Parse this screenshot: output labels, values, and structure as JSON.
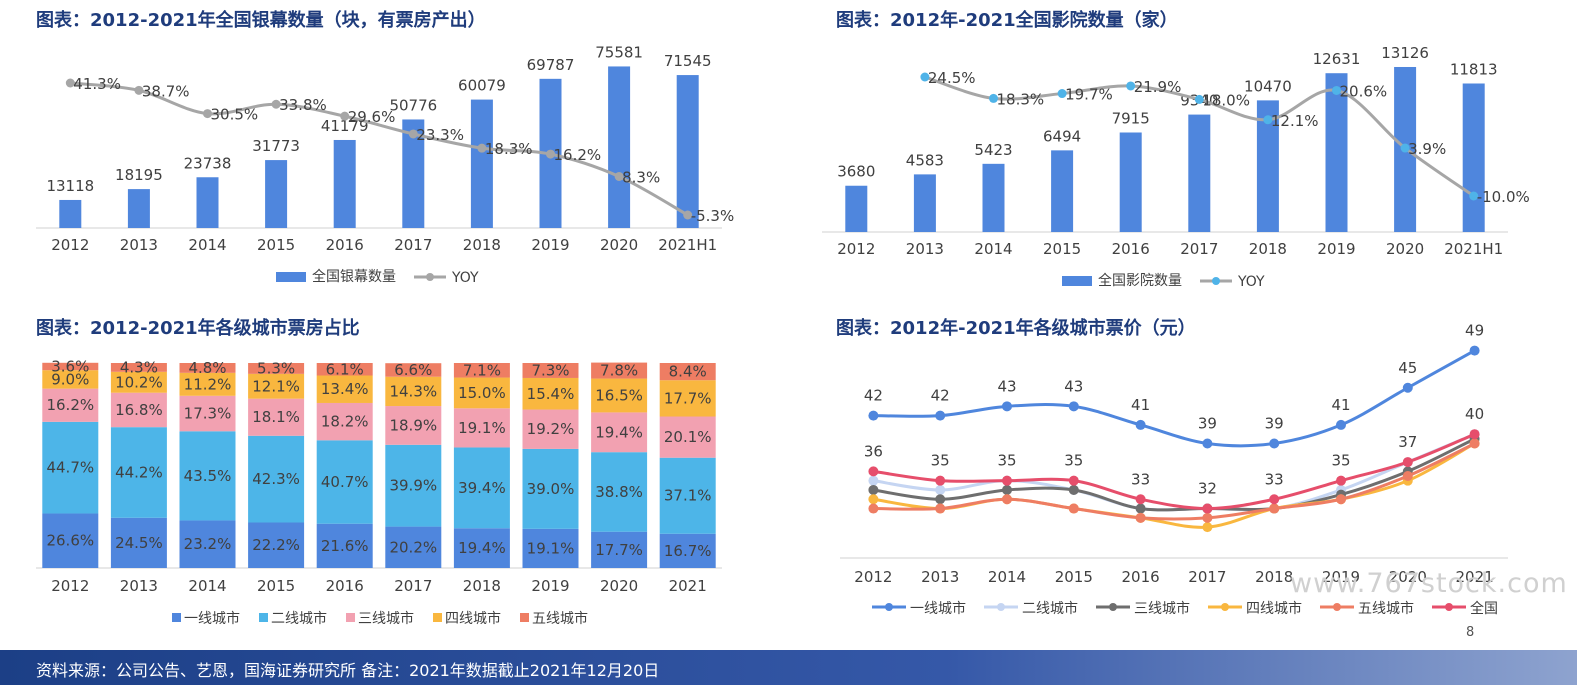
{
  "panels": {
    "screens_title": "图表：2012-2021年全国银幕数量（块，有票房产出）",
    "cinemas_title": "图表：2012年-2021全国影院数量（家）",
    "share_title": "图表：2012-2021年各级城市票房占比",
    "price_title": "图表：2012年-2021年各级城市票价（元）"
  },
  "footer": {
    "source": "资料来源：公司公告、艺恩，国海证券研究所 备注：2021年数据截止2021年12月20日"
  },
  "page_number": "8",
  "watermark": "www.767stock.com",
  "chart_data": [
    {
      "id": "screens",
      "type": "bar",
      "categories": [
        "2012",
        "2013",
        "2014",
        "2015",
        "2016",
        "2017",
        "2018",
        "2019",
        "2020",
        "2021H1"
      ],
      "series": [
        {
          "name": "全国银幕数量",
          "type": "bar",
          "values": [
            13118,
            18195,
            23738,
            31773,
            41179,
            50776,
            60079,
            69787,
            75581,
            71545
          ],
          "color": "#4f86dd"
        },
        {
          "name": "YOY",
          "type": "line",
          "values": [
            41.3,
            38.7,
            30.5,
            33.8,
            29.6,
            23.3,
            18.3,
            16.2,
            8.3,
            -5.3
          ],
          "labels": [
            "41.3%",
            "38.7%",
            "30.5%",
            "33.8%",
            "29.6%",
            "23.3%",
            "18.3%",
            "16.2%",
            "8.3%",
            "-5.3%"
          ],
          "color": "#a6a6a6"
        }
      ],
      "ylim": [
        0,
        80000
      ],
      "legend": "bottom"
    },
    {
      "id": "cinemas",
      "type": "bar",
      "categories": [
        "2012",
        "2013",
        "2014",
        "2015",
        "2016",
        "2017",
        "2018",
        "2019",
        "2020",
        "2021H1"
      ],
      "series": [
        {
          "name": "全国影院数量",
          "type": "bar",
          "values": [
            3680,
            4583,
            5423,
            6494,
            7915,
            9340,
            10470,
            12631,
            13126,
            11813
          ],
          "color": "#4f86dd"
        },
        {
          "name": "YOY",
          "type": "line",
          "values": [
            null,
            24.5,
            18.3,
            19.7,
            21.9,
            18.0,
            12.1,
            20.6,
            3.9,
            -10.0
          ],
          "labels": [
            "",
            "24.5%",
            "18.3%",
            "19.7%",
            "21.9%",
            "18.0%",
            "12.1%",
            "20.6%",
            "3.9%",
            "-10.0%"
          ],
          "color": "#a6a6a6",
          "marker_color": "#4fb3e8"
        }
      ],
      "ylim": [
        0,
        14000
      ],
      "legend": "bottom"
    },
    {
      "id": "share",
      "type": "bar",
      "stacked": true,
      "categories": [
        "2012",
        "2013",
        "2014",
        "2015",
        "2016",
        "2017",
        "2018",
        "2019",
        "2020",
        "2021"
      ],
      "series": [
        {
          "name": "一线城市",
          "values": [
            26.6,
            24.5,
            23.2,
            22.2,
            21.6,
            20.2,
            19.4,
            19.1,
            17.7,
            16.7
          ],
          "color": "#4f86dd"
        },
        {
          "name": "二线城市",
          "values": [
            44.7,
            44.2,
            43.5,
            42.3,
            40.7,
            39.9,
            39.4,
            39.0,
            38.8,
            37.1
          ],
          "color": "#4db5e8"
        },
        {
          "name": "三线城市",
          "values": [
            16.2,
            16.8,
            17.3,
            18.1,
            18.2,
            18.9,
            19.1,
            19.2,
            19.4,
            20.1
          ],
          "color": "#f2a1b1"
        },
        {
          "name": "四线城市",
          "values": [
            9.0,
            10.2,
            11.2,
            12.1,
            13.4,
            14.3,
            15.0,
            15.4,
            16.5,
            17.7
          ],
          "color": "#f9b73f"
        },
        {
          "name": "五线城市",
          "values": [
            3.6,
            4.3,
            4.8,
            5.3,
            6.1,
            6.6,
            7.1,
            7.3,
            7.8,
            8.4
          ],
          "color": "#ee7d63"
        }
      ],
      "ylim": [
        0,
        100
      ],
      "legend": "bottom"
    },
    {
      "id": "price",
      "type": "line",
      "categories": [
        "2012",
        "2013",
        "2014",
        "2015",
        "2016",
        "2017",
        "2018",
        "2019",
        "2020",
        "2021"
      ],
      "series": [
        {
          "name": "一线城市",
          "values": [
            42,
            42,
            43,
            43,
            41,
            39,
            39,
            41,
            45,
            49
          ],
          "color": "#4f86dd",
          "labeled": true
        },
        {
          "name": "二线城市",
          "values": [
            35,
            34,
            35,
            34,
            32,
            32,
            32,
            34,
            37,
            40
          ],
          "color": "#c5d5f2"
        },
        {
          "name": "三线城市",
          "values": [
            34,
            33,
            34,
            34,
            32,
            32,
            32,
            33.5,
            36,
            39.5
          ],
          "color": "#6e6e6e"
        },
        {
          "name": "四线城市",
          "values": [
            33,
            32,
            33,
            32,
            31,
            30,
            32,
            33,
            35,
            39
          ],
          "color": "#f9b73f"
        },
        {
          "name": "五线城市",
          "values": [
            32,
            32,
            33,
            32,
            31,
            31,
            32,
            33,
            35.5,
            39
          ],
          "color": "#ee7d63"
        },
        {
          "name": "全国",
          "values": [
            36,
            35,
            35,
            35,
            33,
            32,
            33,
            35,
            37,
            40
          ],
          "color": "#e64e6b",
          "labeled": true
        }
      ],
      "ylim": [
        27,
        51
      ],
      "legend": "bottom"
    }
  ]
}
